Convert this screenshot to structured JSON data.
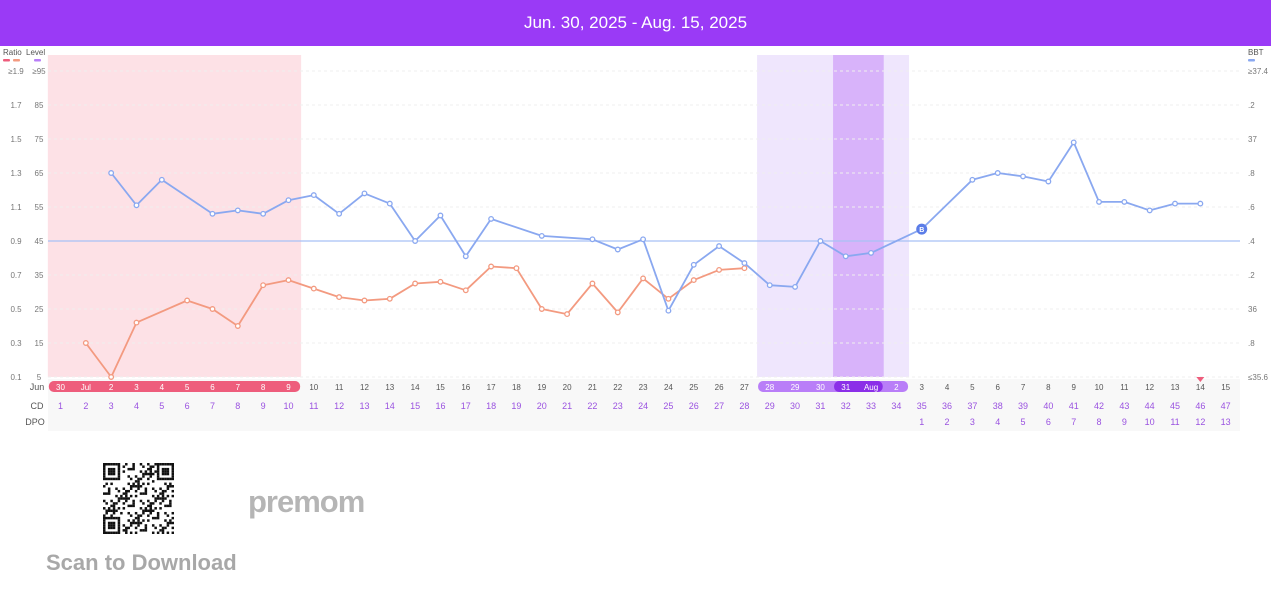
{
  "header": {
    "date_range": "Jun. 30, 2025 - Aug. 15, 2025"
  },
  "legend": {
    "left_ratio": "Ratio",
    "left_level": "Level",
    "right_bbt": "BBT"
  },
  "colors": {
    "header": "#9a3af6",
    "lh_line": "#f39a80",
    "bbt_line": "#8aa8f0",
    "period": "#fde1e6",
    "fertile_light": "#efe6fd",
    "fertile_dark": "#d8b3fa",
    "date_pink": "#ee5d7c",
    "date_purple": "#b97ef8",
    "cd_text": "#9a52e0",
    "coverline": "#a7c1f5"
  },
  "footer": {
    "scan_text": "Scan to Download",
    "logo": "premom",
    "qr_icon": "qr-code-icon"
  },
  "chart_data": {
    "type": "line",
    "title": "",
    "left_axis_ratio": [
      "≥1.9",
      "1.7",
      "1.5",
      "1.3",
      "1.1",
      "0.9",
      "0.7",
      "0.5",
      "0.3",
      "0.1"
    ],
    "left_axis_level": [
      "≥95",
      "85",
      "75",
      "65",
      "55",
      "45",
      "35",
      "25",
      "15",
      "5"
    ],
    "right_axis_bbt": [
      "≥37.4",
      ".2",
      "37",
      ".8",
      ".6",
      ".4",
      ".2",
      "36",
      ".8",
      "≤35.6"
    ],
    "ylim_ratio": [
      0.1,
      1.9
    ],
    "ylim_bbt": [
      35.6,
      37.4
    ],
    "coverline_bbt": 36.4,
    "month_row_label": "Jun",
    "date_labels": [
      "30",
      "Jul",
      "2",
      "3",
      "4",
      "5",
      "6",
      "7",
      "8",
      "9",
      "10",
      "11",
      "12",
      "13",
      "14",
      "15",
      "16",
      "17",
      "18",
      "19",
      "20",
      "21",
      "22",
      "23",
      "24",
      "25",
      "26",
      "27",
      "28",
      "29",
      "30",
      "31",
      "Aug",
      "2",
      "3",
      "4",
      "5",
      "6",
      "7",
      "8",
      "9",
      "10",
      "11",
      "12",
      "13",
      "14",
      "15"
    ],
    "cd_label": "CD",
    "cd": [
      "1",
      "2",
      "3",
      "4",
      "5",
      "6",
      "7",
      "8",
      "9",
      "10",
      "11",
      "12",
      "13",
      "14",
      "15",
      "16",
      "17",
      "18",
      "19",
      "20",
      "21",
      "22",
      "23",
      "24",
      "25",
      "26",
      "27",
      "28",
      "29",
      "30",
      "31",
      "32",
      "33",
      "34",
      "35",
      "36",
      "37",
      "38",
      "39",
      "40",
      "41",
      "42",
      "43",
      "44",
      "45",
      "46",
      "47"
    ],
    "dpo_label": "DPO",
    "dpo": [
      "",
      "",
      "",
      "",
      "",
      "",
      "",
      "",
      "",
      "",
      "",
      "",
      "",
      "",
      "",
      "",
      "",
      "",
      "",
      "",
      "",
      "",
      "",
      "",
      "",
      "",
      "",
      "",
      "",
      "",
      "",
      "",
      "",
      "",
      "1",
      "2",
      "3",
      "4",
      "5",
      "6",
      "7",
      "8",
      "9",
      "10",
      "11",
      "12",
      "13"
    ],
    "period_days": [
      1,
      10
    ],
    "fertile_days": [
      29,
      34
    ],
    "peak_days": [
      32,
      33
    ],
    "ovulation_day": 35,
    "ovulation_marker": "B",
    "period_prediction_day": 46,
    "series": [
      {
        "key": "lh",
        "axis": "ratio",
        "values": [
          null,
          0.3,
          0.1,
          0.42,
          null,
          0.55,
          0.5,
          0.4,
          0.64,
          0.67,
          0.62,
          0.57,
          0.55,
          0.56,
          0.65,
          0.66,
          0.61,
          0.75,
          0.74,
          0.5,
          0.47,
          0.65,
          0.48,
          0.68,
          0.56,
          0.67,
          0.73,
          0.74,
          null,
          null,
          null,
          null,
          null,
          null,
          null,
          null,
          null,
          null,
          null,
          null,
          null,
          null,
          null,
          null,
          null,
          null,
          null
        ]
      },
      {
        "key": "bbt",
        "axis": "bbt",
        "values": [
          null,
          null,
          36.8,
          36.61,
          36.76,
          null,
          36.56,
          36.58,
          36.56,
          36.64,
          36.67,
          36.56,
          36.68,
          36.62,
          36.4,
          36.55,
          36.31,
          36.53,
          null,
          36.43,
          null,
          36.41,
          36.35,
          36.41,
          35.99,
          36.26,
          36.37,
          36.27,
          36.14,
          36.13,
          36.4,
          36.31,
          36.33,
          null,
          36.47,
          null,
          36.76,
          36.8,
          36.78,
          36.75,
          36.98,
          36.63,
          36.63,
          36.58,
          36.62,
          36.62,
          null
        ]
      }
    ]
  }
}
